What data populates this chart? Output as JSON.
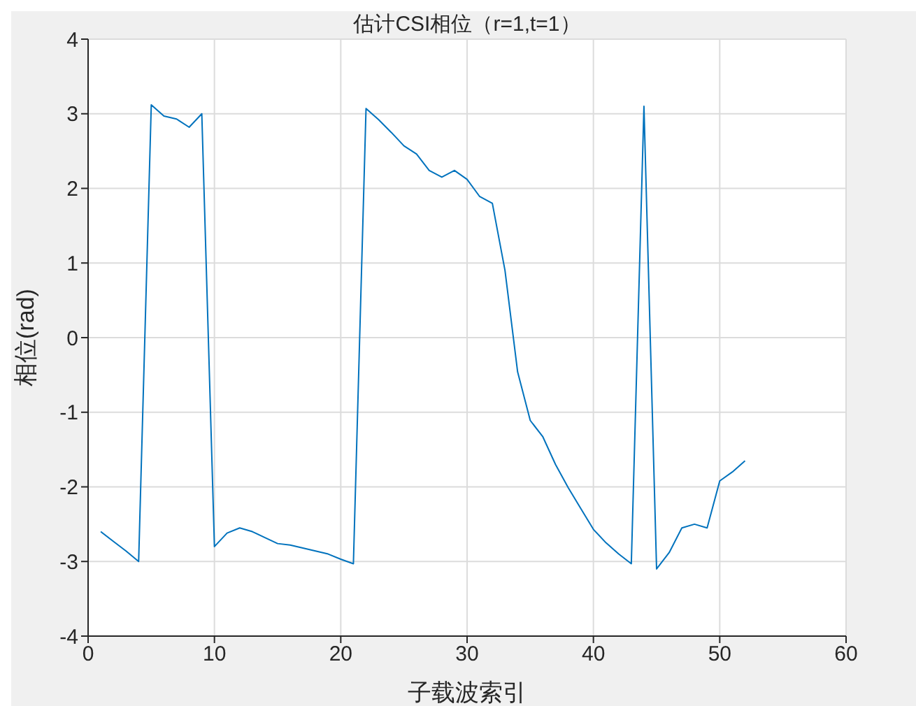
{
  "chart_data": {
    "type": "line",
    "title": "估计CSI相位（r=1,t=1）",
    "xlabel": "子载波索引",
    "ylabel": "相位(rad)",
    "x": [
      1,
      2,
      3,
      4,
      5,
      6,
      7,
      8,
      9,
      10,
      11,
      12,
      13,
      14,
      15,
      16,
      17,
      18,
      19,
      20,
      21,
      22,
      23,
      24,
      25,
      26,
      27,
      28,
      29,
      30,
      31,
      32,
      33,
      34,
      35,
      36,
      37,
      38,
      39,
      40,
      41,
      42,
      43,
      44,
      45,
      46,
      47,
      48,
      49,
      50,
      51,
      52
    ],
    "series": [
      {
        "color": "#0072bd",
        "values": [
          -2.6,
          -2.73,
          -2.86,
          -3.0,
          3.12,
          2.97,
          2.93,
          2.82,
          3.0,
          -2.8,
          -2.62,
          -2.55,
          -2.6,
          -2.68,
          -2.76,
          -2.78,
          -2.82,
          -2.86,
          -2.9,
          -2.97,
          -3.03,
          3.07,
          2.92,
          2.75,
          2.57,
          2.46,
          2.24,
          2.15,
          2.24,
          2.12,
          1.89,
          1.8,
          0.9,
          -0.46,
          -1.11,
          -1.33,
          -1.7,
          -2.01,
          -2.29,
          -2.57,
          -2.75,
          -2.9,
          -3.03,
          3.1,
          -3.1,
          -2.88,
          -2.55,
          -2.5,
          -2.55,
          -1.92,
          -1.8,
          -1.65
        ]
      }
    ],
    "xlim": [
      0,
      60
    ],
    "xticks": [
      0,
      10,
      20,
      30,
      40,
      50,
      60
    ],
    "ylim": [
      -4,
      4
    ],
    "yticks": [
      -4,
      -3,
      -2,
      -1,
      0,
      1,
      2,
      3,
      4
    ],
    "grid": true,
    "legend": false,
    "marker": "none",
    "line_style": "solid"
  }
}
